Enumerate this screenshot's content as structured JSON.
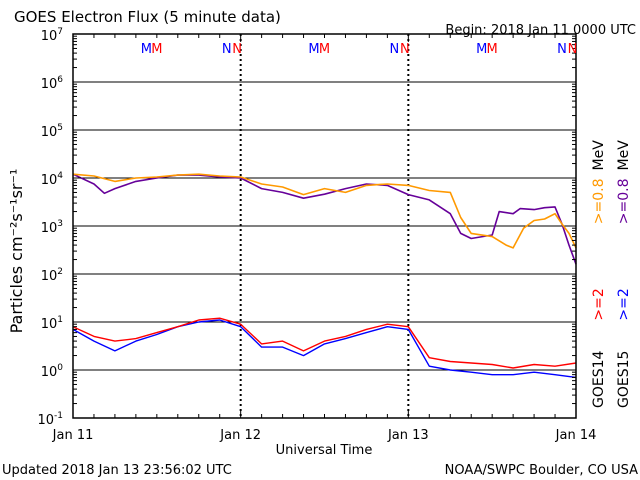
{
  "header": {
    "title": "GOES Electron Flux (5 minute data)",
    "begin": "Begin: 2018 Jan 11 0000 UTC"
  },
  "footer": {
    "updated": "Updated 2018 Jan 13 23:56:02 UTC",
    "credit": "NOAA/SWPC Boulder, CO USA"
  },
  "colors": {
    "goes14_hi": "#ff9900",
    "goes15_hi": "#660099",
    "goes14_lo": "#ff0000",
    "goes15_lo": "#0000ff",
    "frame": "#000000"
  },
  "chart_data": {
    "type": "line",
    "yscale": "log",
    "ylim": [
      0.1,
      10000000
    ],
    "xlim": [
      "2018-01-11 00:00",
      "2018-01-14 00:00"
    ],
    "xlabel": "Universal Time",
    "ylabel": "Particles cm⁻²s⁻¹sr⁻¹",
    "x_ticks": [
      "Jan 11",
      "Jan 12",
      "Jan 13",
      "Jan 14"
    ],
    "y_ticks": [
      {
        "value": 0.1,
        "base": "10",
        "exp": "-1"
      },
      {
        "value": 1,
        "base": "10",
        "exp": "0"
      },
      {
        "value": 10,
        "base": "10",
        "exp": "1"
      },
      {
        "value": 100,
        "base": "10",
        "exp": "2"
      },
      {
        "value": 1000,
        "base": "10",
        "exp": "3"
      },
      {
        "value": 10000,
        "base": "10",
        "exp": "4"
      },
      {
        "value": 100000,
        "base": "10",
        "exp": "5"
      },
      {
        "value": 1000000,
        "base": "10",
        "exp": "6"
      },
      {
        "value": 10000000,
        "base": "10",
        "exp": "7"
      }
    ],
    "threshold": {
      "value": 1000,
      "style": "dashed"
    },
    "markers": [
      {
        "day": 0,
        "items": [
          {
            "text": "M",
            "hour": 10.5,
            "color": "#0000ff"
          },
          {
            "text": "M",
            "hour": 12.0,
            "color": "#ff0000"
          },
          {
            "text": "N",
            "hour": 22.0,
            "color": "#0000ff"
          },
          {
            "text": "N",
            "hour": 23.5,
            "color": "#ff0000"
          }
        ]
      },
      {
        "day": 1,
        "items": [
          {
            "text": "M",
            "hour": 10.5,
            "color": "#0000ff"
          },
          {
            "text": "M",
            "hour": 12.0,
            "color": "#ff0000"
          },
          {
            "text": "N",
            "hour": 22.0,
            "color": "#0000ff"
          },
          {
            "text": "N",
            "hour": 23.5,
            "color": "#ff0000"
          }
        ]
      },
      {
        "day": 2,
        "items": [
          {
            "text": "M",
            "hour": 10.5,
            "color": "#0000ff"
          },
          {
            "text": "M",
            "hour": 12.0,
            "color": "#ff0000"
          },
          {
            "text": "N",
            "hour": 22.0,
            "color": "#0000ff"
          },
          {
            "text": "N",
            "hour": 23.5,
            "color": "#ff0000"
          }
        ]
      }
    ],
    "legend": {
      "placement": "right-vertical",
      "entries": [
        {
          "label": "GOES14",
          "lines": [
            {
              "text": ">=2",
              "color": "#ff0000"
            },
            {
              "text": ">=0.8",
              "color": "#ff9900"
            },
            {
              "text": "MeV",
              "color": "#000000"
            }
          ]
        },
        {
          "label": "GOES15",
          "lines": [
            {
              "text": ">=2",
              "color": "#0000ff"
            },
            {
              "text": ">=0.8",
              "color": "#660099"
            },
            {
              "text": "MeV",
              "color": "#000000"
            }
          ]
        }
      ]
    },
    "series": [
      {
        "name": "GOES14 >=0.8 MeV",
        "color": "#ff9900",
        "x": [
          0,
          3,
          6,
          9,
          12,
          15,
          18,
          21,
          24,
          27,
          30,
          33,
          36,
          39,
          42,
          45,
          48,
          51,
          54,
          55.5,
          57,
          60,
          62,
          63,
          64.5,
          66,
          67.5,
          69,
          70,
          71,
          72
        ],
        "y": [
          12000,
          11000,
          8500,
          10000,
          10500,
          11500,
          12000,
          11000,
          10500,
          7500,
          6500,
          4500,
          6000,
          5000,
          7000,
          7500,
          7000,
          5500,
          5000,
          1500,
          700,
          600,
          400,
          350,
          900,
          1300,
          1400,
          1800,
          1100,
          700,
          350
        ]
      },
      {
        "name": "GOES15 >=0.8 MeV",
        "color": "#660099",
        "x": [
          0,
          3,
          4.5,
          6,
          9,
          12,
          15,
          18,
          21,
          24,
          27,
          30,
          33,
          36,
          39,
          42,
          45,
          48,
          51,
          54,
          55.5,
          57,
          60,
          61,
          63,
          64,
          66,
          67.5,
          69,
          70,
          71,
          72
        ],
        "y": [
          12000,
          7500,
          4800,
          6000,
          8500,
          10000,
          11500,
          11500,
          10500,
          10000,
          6000,
          5000,
          3800,
          4600,
          6000,
          7500,
          7000,
          4500,
          3500,
          1800,
          700,
          550,
          650,
          2000,
          1800,
          2300,
          2200,
          2400,
          2500,
          1100,
          400,
          160
        ]
      },
      {
        "name": "GOES14 >=2 MeV",
        "color": "#ff0000",
        "x": [
          0,
          3,
          6,
          9,
          12,
          15,
          18,
          21,
          24,
          27,
          30,
          33,
          36,
          39,
          42,
          45,
          48,
          51,
          54,
          57,
          60,
          63,
          66,
          69,
          72
        ],
        "y": [
          8,
          5,
          4,
          4.5,
          6,
          8,
          11,
          12,
          9,
          3.5,
          4,
          2.5,
          4,
          5,
          7,
          9,
          8,
          1.8,
          1.5,
          1.4,
          1.3,
          1.1,
          1.3,
          1.2,
          1.4
        ]
      },
      {
        "name": "GOES15 >=2 MeV",
        "color": "#0000ff",
        "x": [
          0,
          3,
          6,
          9,
          12,
          15,
          18,
          21,
          24,
          27,
          30,
          33,
          36,
          39,
          42,
          45,
          48,
          51,
          54,
          57,
          60,
          63,
          66,
          69,
          72
        ],
        "y": [
          7,
          4,
          2.5,
          4,
          5.5,
          8,
          10,
          11,
          8,
          3,
          3,
          2,
          3.5,
          4.5,
          6,
          8,
          7,
          1.2,
          1,
          0.9,
          0.8,
          0.8,
          0.9,
          0.8,
          0.7
        ]
      }
    ]
  }
}
